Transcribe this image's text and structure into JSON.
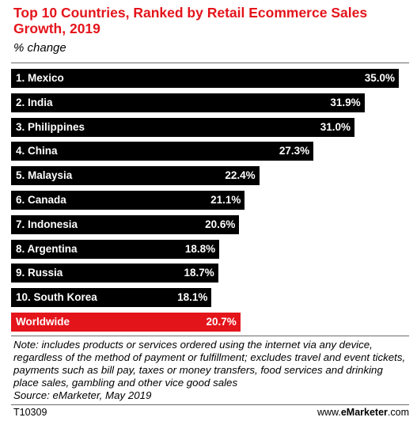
{
  "header": {
    "title": "Top 10 Countries, Ranked by Retail Ecommerce Sales Growth, 2019",
    "subtitle": "% change"
  },
  "chart_data": {
    "type": "bar",
    "orientation": "horizontal",
    "title": "Top 10 Countries, Ranked by Retail Ecommerce Sales Growth, 2019",
    "subtitle": "% change",
    "categories": [
      "1. Mexico",
      "2. India",
      "3. Philippines",
      "4. China",
      "5. Malaysia",
      "6. Canada",
      "7. Indonesia",
      "8. Argentina",
      "9. Russia",
      "10. South Korea",
      "Worldwide"
    ],
    "values": [
      35.0,
      31.9,
      31.0,
      27.3,
      22.4,
      21.1,
      20.6,
      18.8,
      18.7,
      18.1,
      20.7
    ],
    "value_labels": [
      "35.0%",
      "31.9%",
      "31.0%",
      "27.3%",
      "22.4%",
      "21.1%",
      "20.6%",
      "18.8%",
      "18.7%",
      "18.1%",
      "20.7%"
    ],
    "highlight_index": 10,
    "colors": {
      "bar": "#000000",
      "highlight": "#e4141b",
      "label": "#ffffff"
    },
    "xlim": [
      0,
      35.0
    ],
    "grid": false
  },
  "footer": {
    "note": "Note: includes products or services ordered using the internet via any device, regardless of the method of payment or fulfillment; excludes travel and event tickets, payments such as bill pay, taxes or money transfers, food services and drinking place sales, gambling and other vice good sales",
    "source": "Source: eMarketer, May 2019",
    "code": "T10309",
    "site_prefix": "www.",
    "site_brand": "eMarketer",
    "site_suffix": ".com"
  }
}
